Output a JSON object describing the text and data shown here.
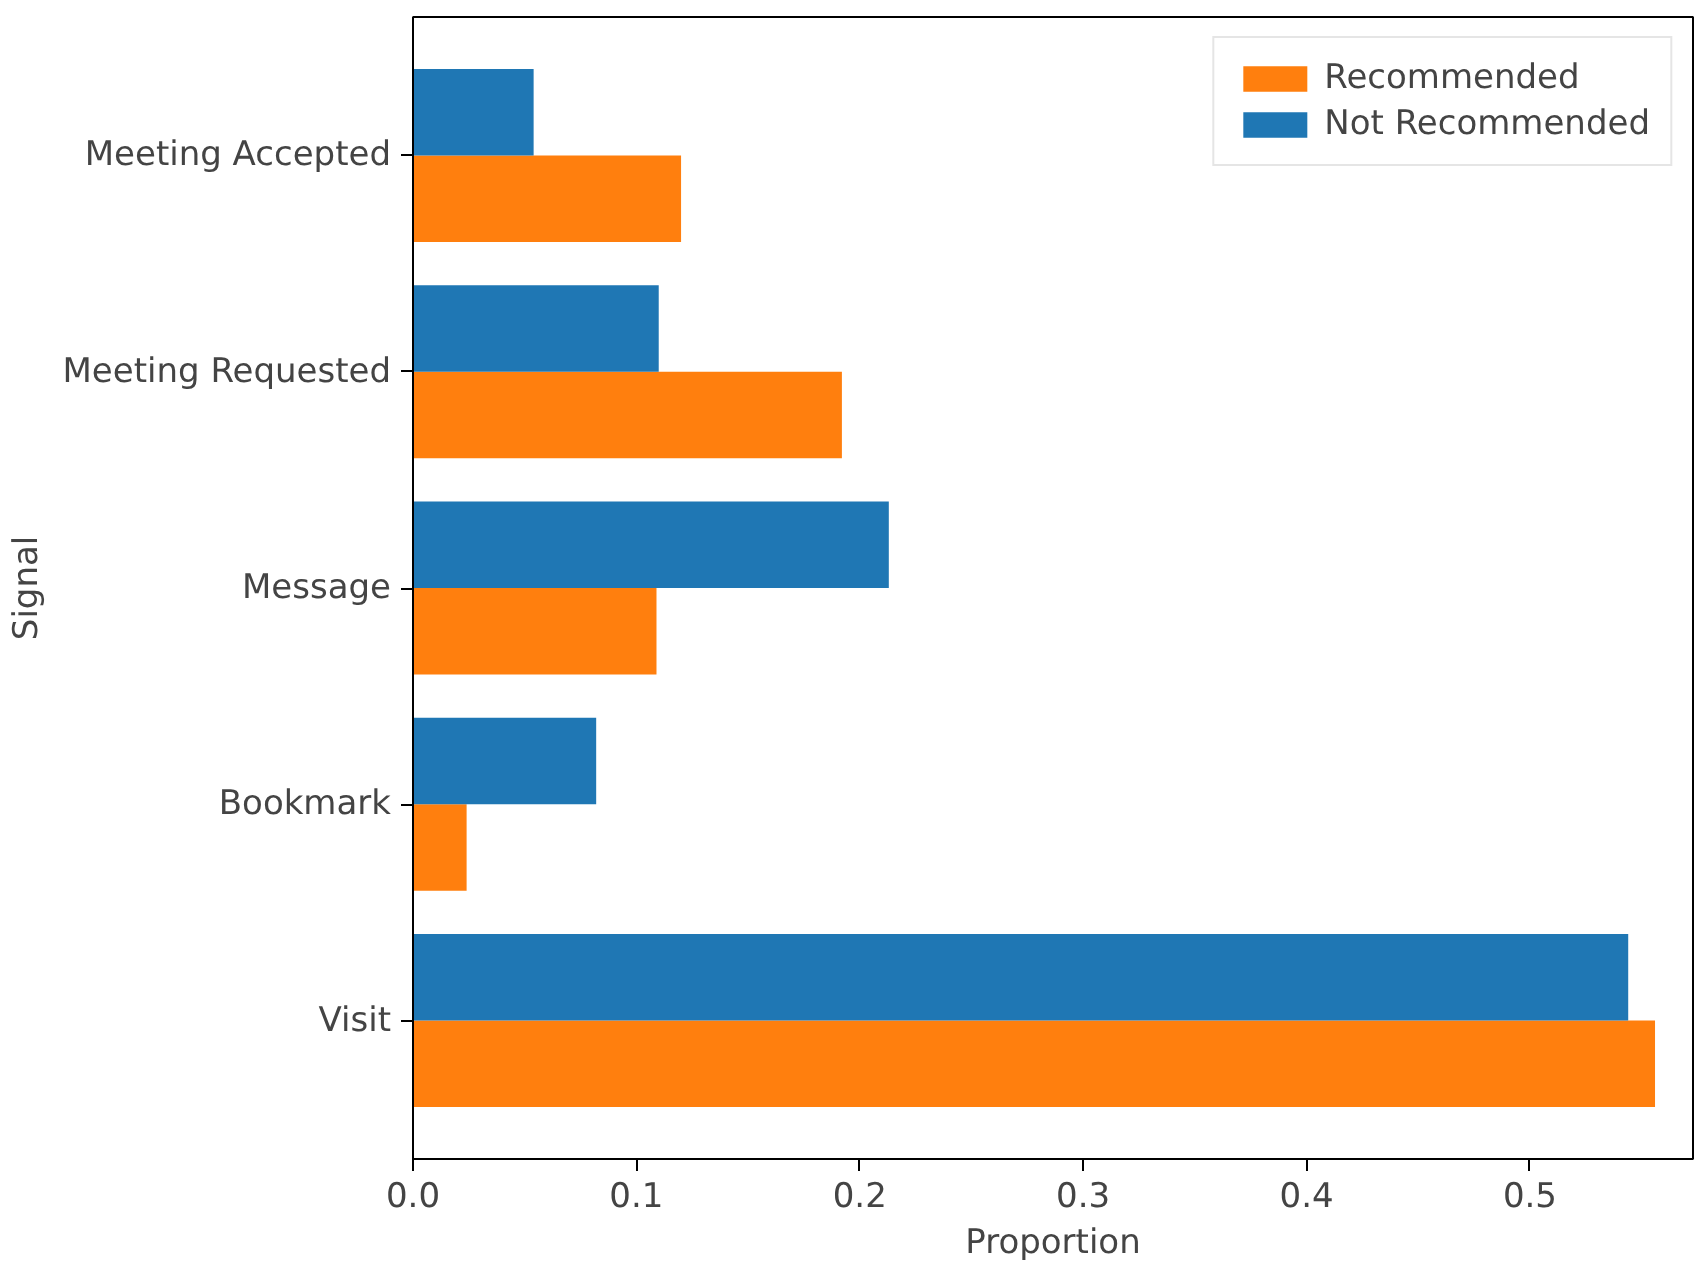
{
  "chart_data": {
    "type": "bar",
    "orientation": "horizontal",
    "xlabel": "Proportion",
    "ylabel": "Signal",
    "categories": [
      "Meeting Accepted",
      "Meeting Requested",
      "Message",
      "Bookmark",
      "Visit"
    ],
    "series": [
      {
        "name": "Recommended",
        "color": "#ff7f0e",
        "values": [
          0.12,
          0.192,
          0.109,
          0.024,
          0.556
        ]
      },
      {
        "name": "Not Recommended",
        "color": "#1f77b4",
        "values": [
          0.054,
          0.11,
          0.213,
          0.082,
          0.544
        ]
      }
    ],
    "xlim": [
      0,
      0.573
    ],
    "xticks": [
      {
        "value": 0,
        "label": "0.0"
      },
      0.1,
      0.2,
      0.3,
      0.4,
      0.5
    ],
    "legend": "top right",
    "grid": false
  }
}
